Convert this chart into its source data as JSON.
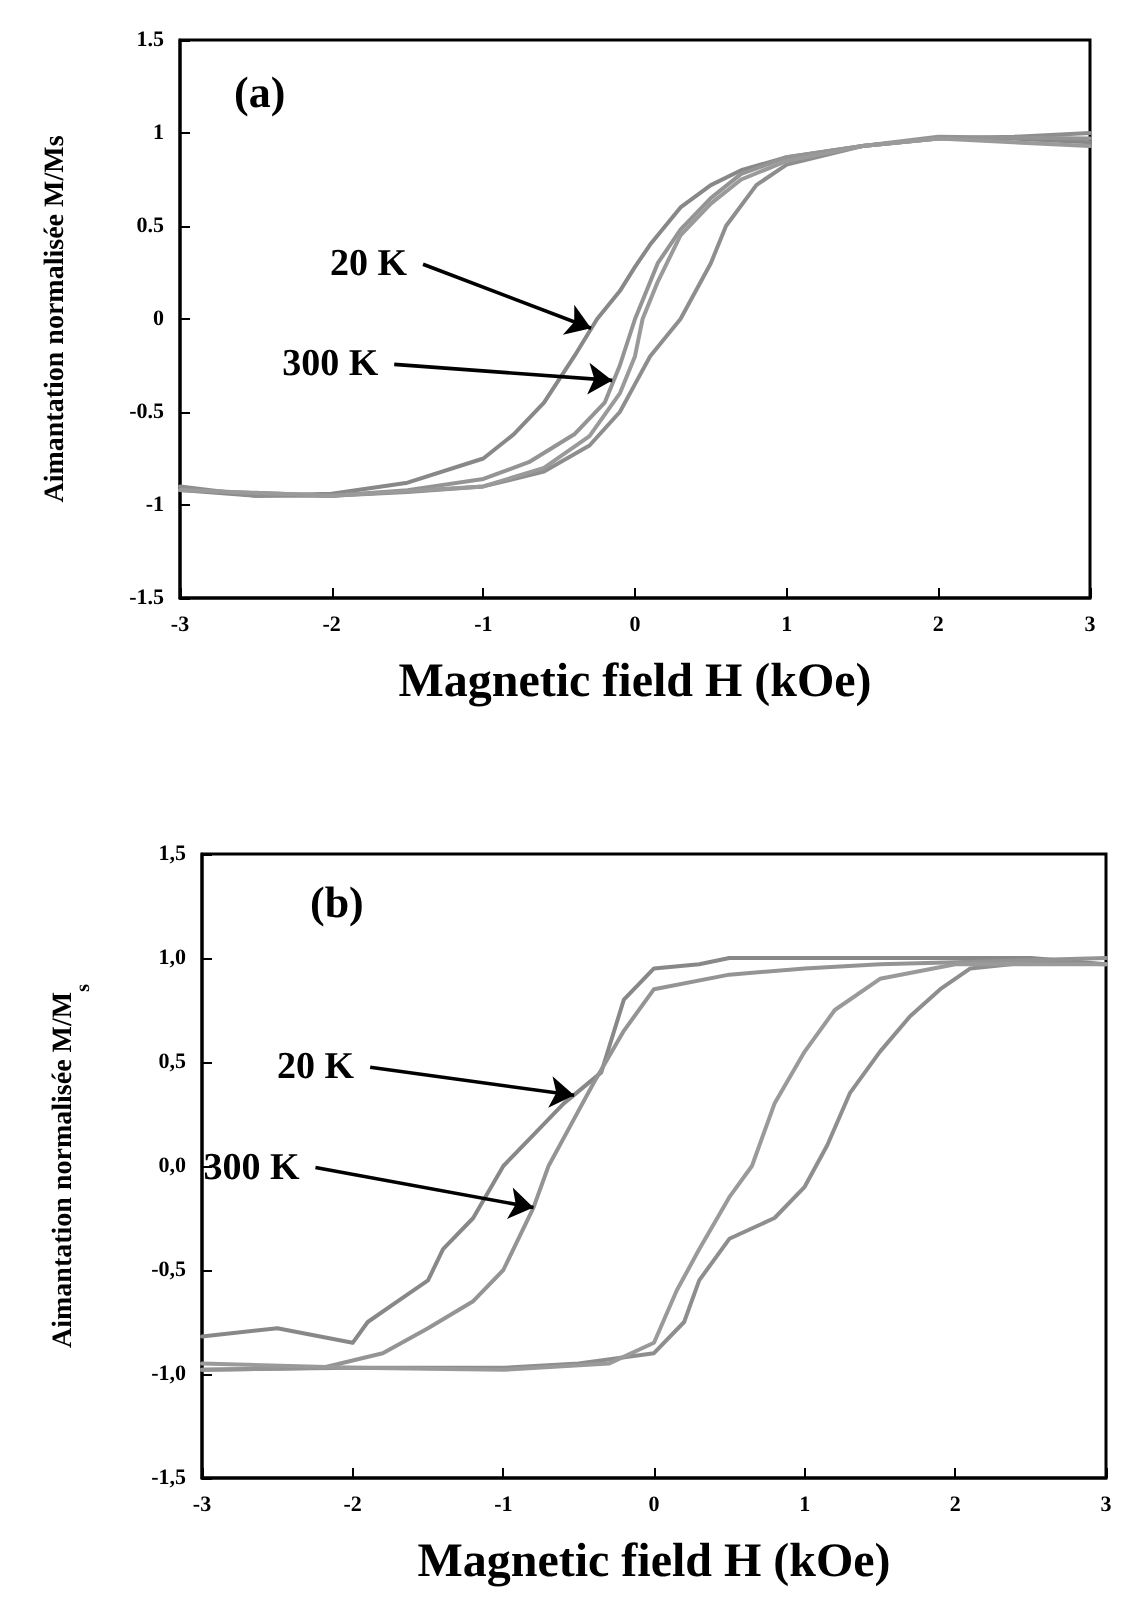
{
  "chart_data": [
    {
      "type": "line",
      "title": "(a)",
      "xlabel": "Magnetic field H (kOe)",
      "ylabel": "Aimantation normalisée M/Ms",
      "marker": "none",
      "line_style": "solid",
      "xlim": [
        -3,
        3
      ],
      "xticks": [
        -3,
        -2,
        -1,
        0,
        1,
        2,
        3
      ],
      "ylim": [
        -1.5,
        1.5
      ],
      "yticks": [
        -1.5,
        -1,
        -0.5,
        0,
        0.5,
        1,
        1.5
      ],
      "annotations": [
        {
          "text": "20 K",
          "x": -0.29,
          "y": -0.05
        },
        {
          "text": "300 K",
          "x": -0.15,
          "y": -0.33
        }
      ],
      "series": [
        {
          "color": "#888888",
          "x": [
            3,
            2.5,
            2,
            1.5,
            1,
            0.7,
            0.5,
            0.3,
            0.1,
            0,
            -0.1,
            -0.25,
            -0.4,
            -0.6,
            -0.8,
            -1,
            -1.5,
            -2,
            -2.5,
            -3
          ],
          "values": [
            0.95,
            0.97,
            0.97,
            0.93,
            0.87,
            0.8,
            0.72,
            0.6,
            0.4,
            0.28,
            0.15,
            0,
            -0.2,
            -0.45,
            -0.62,
            -0.75,
            -0.88,
            -0.94,
            -0.95,
            -0.92
          ]
        },
        {
          "color": "#8e8e8e",
          "x": [
            -3,
            -2.5,
            -2,
            -1.5,
            -1,
            -0.6,
            -0.3,
            -0.1,
            0,
            0.1,
            0.3,
            0.5,
            0.6,
            0.8,
            1,
            1.5,
            2,
            2.5,
            3
          ],
          "values": [
            -0.9,
            -0.95,
            -0.95,
            -0.93,
            -0.9,
            -0.82,
            -0.68,
            -0.5,
            -0.35,
            -0.2,
            0,
            0.3,
            0.5,
            0.72,
            0.83,
            0.93,
            0.97,
            0.98,
            1.0
          ]
        },
        {
          "color": "#949494",
          "x": [
            3,
            2,
            1.5,
            1,
            0.7,
            0.5,
            0.3,
            0.15,
            0.05,
            0,
            -0.1,
            -0.2,
            -0.4,
            -0.7,
            -1,
            -1.5,
            -2,
            -3
          ],
          "values": [
            0.97,
            0.98,
            0.93,
            0.87,
            0.78,
            0.65,
            0.48,
            0.3,
            0.1,
            0,
            -0.25,
            -0.45,
            -0.62,
            -0.77,
            -0.86,
            -0.92,
            -0.95,
            -0.92
          ]
        },
        {
          "color": "#9a9a9a",
          "x": [
            -3,
            -2,
            -1,
            -0.6,
            -0.3,
            -0.1,
            0,
            0.05,
            0.15,
            0.3,
            0.5,
            0.7,
            1,
            1.5,
            2,
            3
          ],
          "values": [
            -0.92,
            -0.95,
            -0.9,
            -0.8,
            -0.63,
            -0.4,
            -0.2,
            0,
            0.2,
            0.45,
            0.62,
            0.75,
            0.85,
            0.93,
            0.97,
            0.93
          ]
        }
      ]
    },
    {
      "type": "line",
      "title": "(b)",
      "xlabel": "Magnetic field H (kOe)",
      "ylabel": "Aimantation normalisée M/M$_{s}$",
      "marker": "none",
      "line_style": "solid",
      "xlim": [
        -3,
        3
      ],
      "xticks": [
        -3,
        -2,
        -1,
        0,
        1,
        2,
        3
      ],
      "ylim": [
        -1.5,
        1.5
      ],
      "yticks": [
        {
          "value": -1.5,
          "label": "-1,5"
        },
        {
          "value": -1,
          "label": "-1,0"
        },
        {
          "value": -0.5,
          "label": "-0,5"
        },
        {
          "value": 0,
          "label": "0,0"
        },
        {
          "value": 0.5,
          "label": "0,5"
        },
        {
          "value": 1,
          "label": "1,0"
        },
        {
          "value": 1.5,
          "label": "1,5"
        }
      ],
      "annotations": [
        {
          "text": "20 K",
          "x": -0.53,
          "y": 0.34
        },
        {
          "text": "300 K",
          "x": -0.8,
          "y": -0.2
        }
      ],
      "series": [
        {
          "color": "#888888",
          "x": [
            3,
            2.5,
            2,
            1.5,
            1,
            0.5,
            0.3,
            0,
            -0.2,
            -0.35,
            -0.6,
            -0.8,
            -1,
            -1.2,
            -1.4,
            -1.5,
            -1.7,
            -1.9,
            -2,
            -2.5,
            -3
          ],
          "values": [
            0.97,
            1.0,
            1.0,
            1.0,
            1.0,
            1.0,
            0.97,
            0.95,
            0.8,
            0.45,
            0.3,
            0.15,
            0,
            -0.25,
            -0.4,
            -0.55,
            -0.65,
            -0.75,
            -0.85,
            -0.78,
            -0.82
          ]
        },
        {
          "color": "#8e8e8e",
          "x": [
            -3,
            -2,
            -1,
            -0.5,
            0,
            0.2,
            0.3,
            0.5,
            0.8,
            1,
            1.15,
            1.3,
            1.5,
            1.7,
            1.9,
            2.1,
            2.5,
            3
          ],
          "values": [
            -0.98,
            -0.97,
            -0.97,
            -0.95,
            -0.9,
            -0.75,
            -0.55,
            -0.35,
            -0.25,
            -0.1,
            0.1,
            0.35,
            0.55,
            0.72,
            0.85,
            0.95,
            0.98,
            0.97
          ]
        },
        {
          "color": "#949494",
          "x": [
            3,
            2,
            1.5,
            1,
            0.5,
            0,
            -0.2,
            -0.4,
            -0.55,
            -0.7,
            -0.8,
            -1,
            -1.2,
            -1.5,
            -1.8,
            -2.2,
            -3
          ],
          "values": [
            1.0,
            0.98,
            0.97,
            0.95,
            0.92,
            0.85,
            0.65,
            0.4,
            0.2,
            0,
            -0.2,
            -0.5,
            -0.65,
            -0.78,
            -0.9,
            -0.97,
            -0.98
          ]
        },
        {
          "color": "#9a9a9a",
          "x": [
            -3,
            -2,
            -1,
            -0.3,
            0,
            0.15,
            0.3,
            0.5,
            0.65,
            0.8,
            1,
            1.2,
            1.5,
            2,
            3
          ],
          "values": [
            -0.95,
            -0.97,
            -0.98,
            -0.95,
            -0.85,
            -0.6,
            -0.4,
            -0.15,
            0,
            0.3,
            0.55,
            0.75,
            0.9,
            0.97,
            0.97
          ]
        }
      ]
    }
  ]
}
